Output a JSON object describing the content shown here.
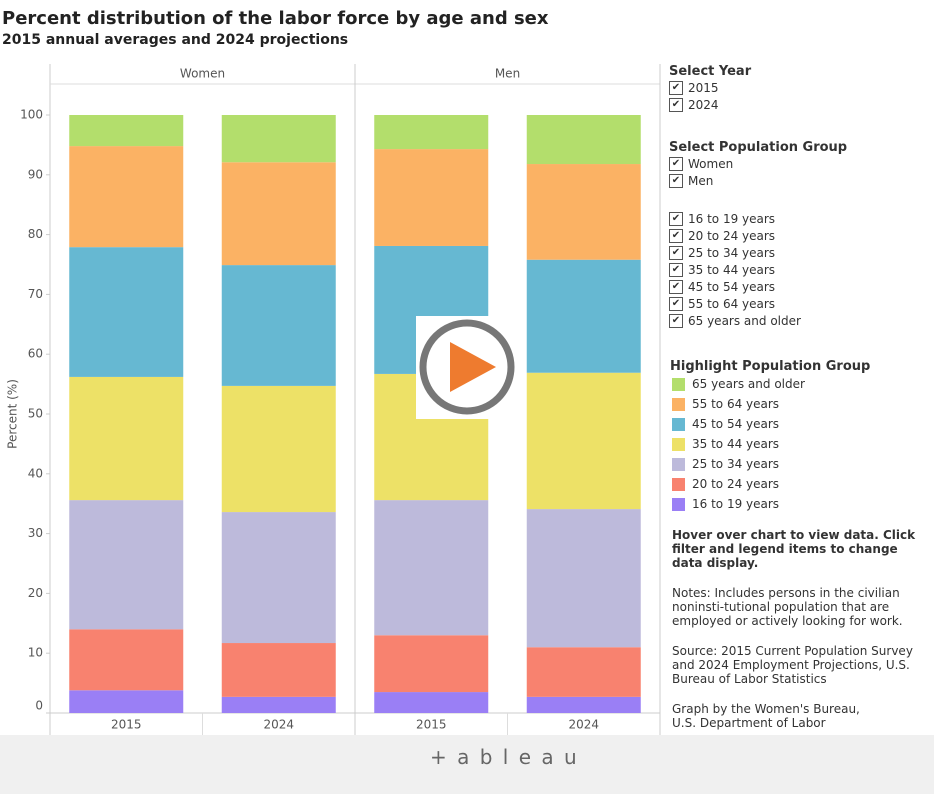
{
  "header": {
    "title": "Percent distribution of the labor force by age and sex",
    "subtitle": "2015 annual averages and 2024 projections"
  },
  "chart_data": {
    "type": "bar",
    "stacked": true,
    "y_label": "Percent (%)",
    "facets": [
      "Women",
      "Men"
    ],
    "categories": [
      "2015",
      "2024",
      "2015",
      "2024"
    ],
    "series": [
      {
        "name": "16 to 19 years",
        "color": "#9a7ff5",
        "values": [
          3.8,
          2.7,
          3.5,
          2.7
        ]
      },
      {
        "name": "20 to 24 years",
        "color": "#f8826f",
        "values": [
          10.2,
          9.0,
          9.5,
          8.3
        ]
      },
      {
        "name": "25 to 34 years",
        "color": "#bdbadb",
        "values": [
          21.6,
          21.9,
          22.6,
          23.1
        ]
      },
      {
        "name": "35 to 44 years",
        "color": "#ede167",
        "values": [
          20.6,
          21.1,
          21.1,
          22.8
        ]
      },
      {
        "name": "45 to 54 years",
        "color": "#66b8d2",
        "values": [
          21.7,
          20.2,
          21.4,
          18.9
        ]
      },
      {
        "name": "55 to 64 years",
        "color": "#fbb264",
        "values": [
          16.9,
          17.2,
          16.2,
          16.0
        ]
      },
      {
        "name": "65 years and older",
        "color": "#b3de6c",
        "values": [
          5.2,
          7.9,
          5.7,
          8.2
        ]
      }
    ],
    "ylim": [
      0,
      100
    ],
    "yticks": [
      0,
      10,
      20,
      30,
      40,
      50,
      60,
      70,
      80,
      90,
      100
    ],
    "grid": false
  },
  "controls": {
    "year_title": "Select Year",
    "group_title": "Select Population Group",
    "legend_title": "Highlight Population Group",
    "instructions": "Hover over chart to view data. Click filter and legend items to change data display.",
    "notes": "Notes: Includes persons in the civilian noninsti-tutional population that are employed or actively looking for work.",
    "source": "Source: 2015 Current Population Survey and 2024 Employment Projections, U.S. Bureau of Labor Statistics",
    "credit": "Graph by the Women's Bureau, U.S. Department of Labor"
  },
  "footer": {
    "logo": "+ a b l e a u"
  }
}
